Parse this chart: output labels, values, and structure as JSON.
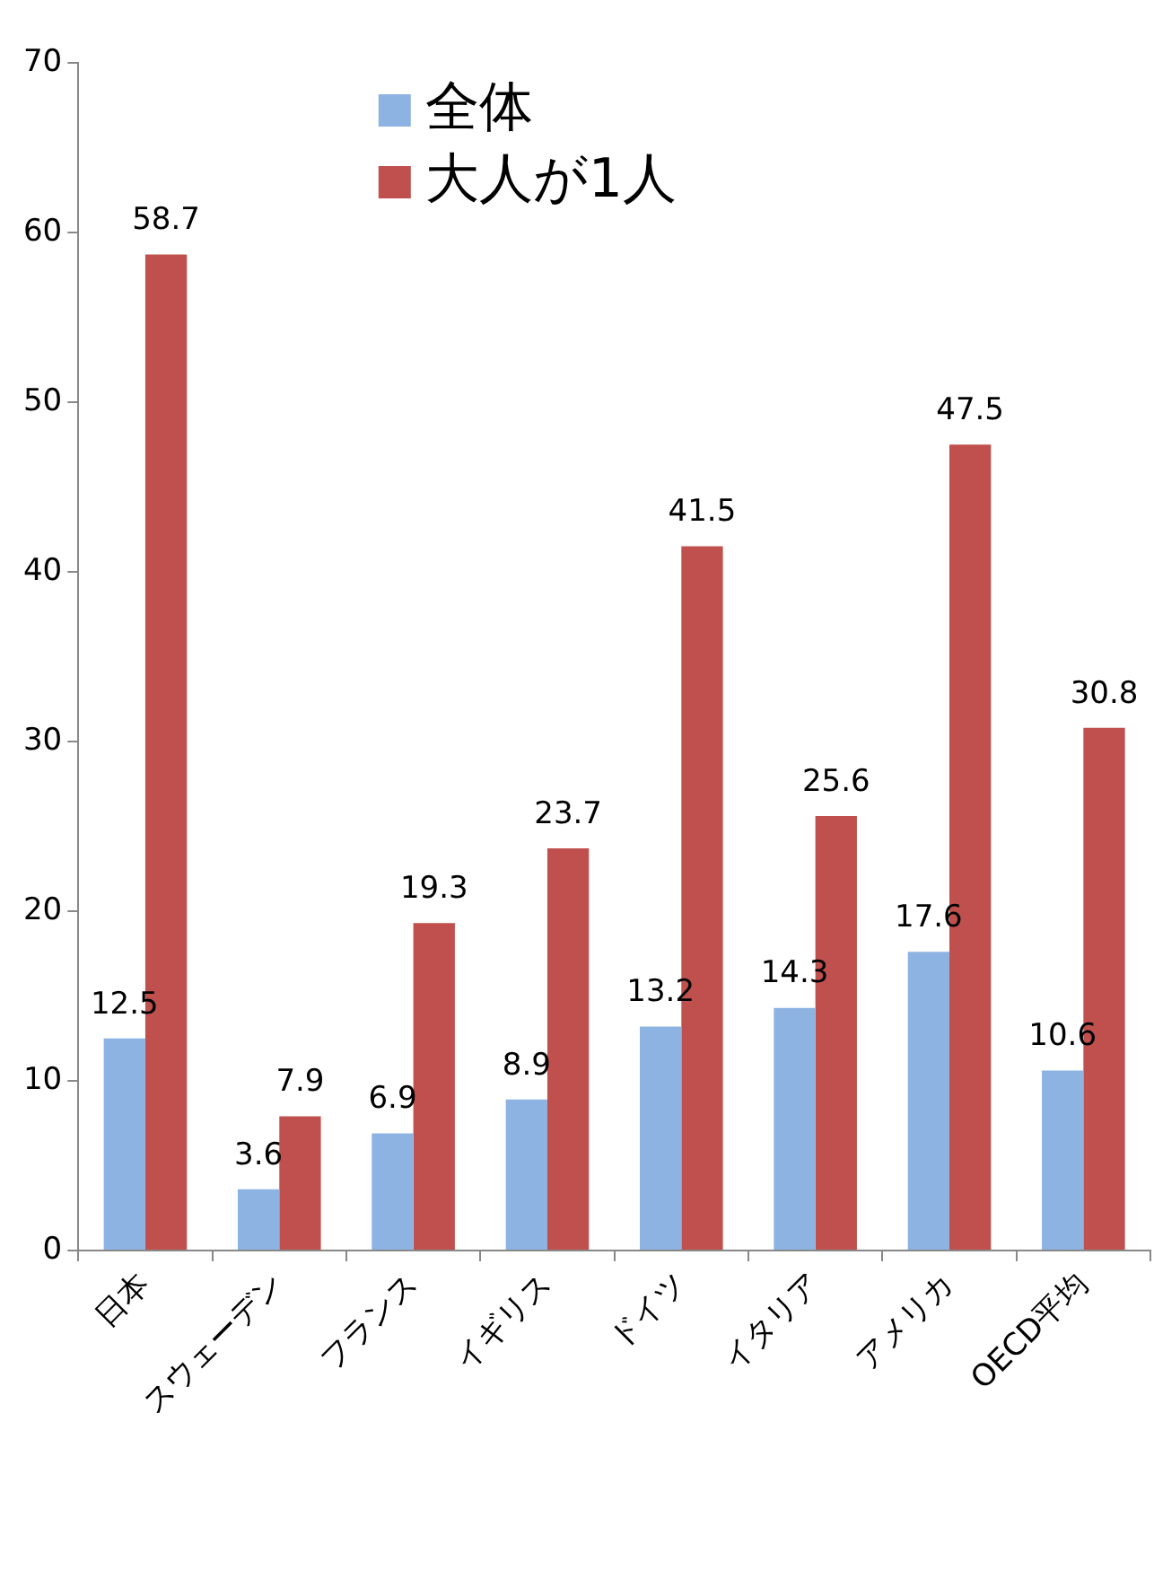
{
  "chart_data": {
    "type": "bar",
    "categories": [
      "日本",
      "スウェーデン",
      "フランス",
      "イギリス",
      "ドイツ",
      "イタリア",
      "アメリカ",
      "OECD平均"
    ],
    "series": [
      {
        "name": "全体",
        "color": "#8db3e2",
        "values": [
          12.5,
          3.6,
          6.9,
          8.9,
          13.2,
          14.3,
          17.6,
          10.6
        ]
      },
      {
        "name": "大人が1人",
        "color": "#c0504d",
        "values": [
          58.7,
          7.9,
          19.3,
          23.7,
          41.5,
          25.6,
          47.5,
          30.8
        ]
      }
    ],
    "ylim": [
      0,
      70
    ],
    "yticks": [
      0,
      10,
      20,
      30,
      40,
      50,
      60,
      70
    ],
    "grid": false,
    "legend": "top",
    "data_labels": true
  }
}
